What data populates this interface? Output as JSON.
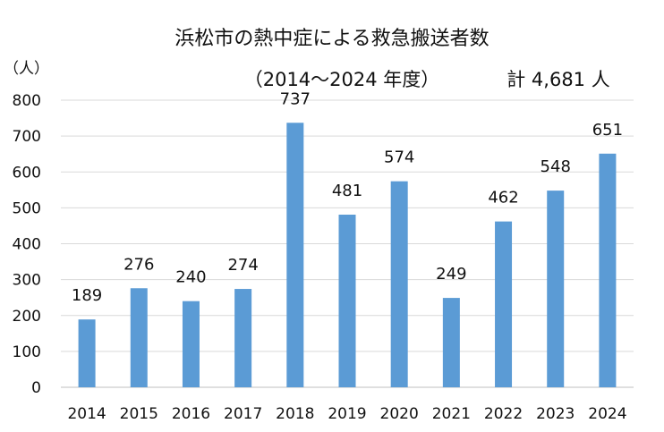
{
  "chart_data": {
    "type": "bar",
    "title": "浜松市の熱中症による救急搬送者数",
    "subtitle": "（2014～2024 年度）",
    "total_label": "計 4,681 人",
    "ylabel": "（人）",
    "xlabel": "",
    "ylim": [
      0,
      800
    ],
    "yticks": [
      0,
      100,
      200,
      300,
      400,
      500,
      600,
      700,
      800
    ],
    "grid": true,
    "legend": "none",
    "categories": [
      "2014",
      "2015",
      "2016",
      "2017",
      "2018",
      "2019",
      "2020",
      "2021",
      "2022",
      "2023",
      "2024"
    ],
    "series": [
      {
        "values": [
          189,
          276,
          240,
          274,
          737,
          481,
          574,
          249,
          462,
          548,
          651
        ],
        "color": "#5b9bd5"
      }
    ],
    "data_labels": true
  },
  "colors": {
    "bar": "#5b9bd5",
    "grid": "#d9d9d9",
    "axis": "#bfbfbf",
    "text": "#111111"
  }
}
